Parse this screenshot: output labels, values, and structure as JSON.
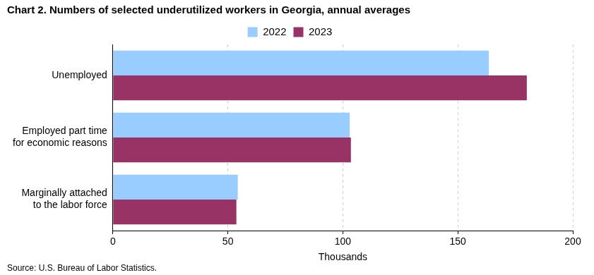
{
  "chart_data": {
    "type": "bar",
    "orientation": "horizontal",
    "title": "Chart 2. Numbers of selected underutilized workers in Georgia, annual averages",
    "source": "Source: U.S. Bureau of Labor Statistics.",
    "x_label": "Thousands",
    "categories": [
      "Unemployed",
      "Employed part time for economic reasons",
      "Marginally attached to the labor force"
    ],
    "series": [
      {
        "name": "2022",
        "color": "#99ccff",
        "values": [
          163.5,
          103,
          54.3
        ]
      },
      {
        "name": "2023",
        "color": "#993366",
        "values": [
          180,
          103.5,
          53.7
        ]
      }
    ],
    "xlim": [
      0,
      200
    ],
    "xticks": [
      0,
      50,
      100,
      150,
      200
    ],
    "grid": true,
    "legend": "top"
  }
}
